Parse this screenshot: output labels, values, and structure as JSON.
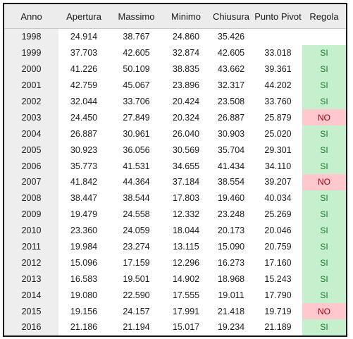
{
  "headers": [
    "Anno",
    "Apertura",
    "Massimo",
    "Minimo",
    "Chiusura",
    "Punto Pivot",
    "Regola"
  ],
  "rows": [
    {
      "anno": "1998",
      "apertura": "24.914",
      "massimo": "38.767",
      "minimo": "24.860",
      "chiusura": "35.426",
      "pivot": "",
      "regola": ""
    },
    {
      "anno": "1999",
      "apertura": "37.703",
      "massimo": "42.605",
      "minimo": "32.874",
      "chiusura": "42.605",
      "pivot": "33.018",
      "regola": "SI"
    },
    {
      "anno": "2000",
      "apertura": "41.226",
      "massimo": "50.109",
      "minimo": "38.835",
      "chiusura": "43.662",
      "pivot": "39.361",
      "regola": "SI"
    },
    {
      "anno": "2001",
      "apertura": "42.759",
      "massimo": "45.067",
      "minimo": "23.896",
      "chiusura": "32.317",
      "pivot": "44.202",
      "regola": "SI"
    },
    {
      "anno": "2002",
      "apertura": "32.044",
      "massimo": "33.706",
      "minimo": "20.424",
      "chiusura": "23.508",
      "pivot": "33.760",
      "regola": "SI"
    },
    {
      "anno": "2003",
      "apertura": "24.450",
      "massimo": "27.849",
      "minimo": "20.324",
      "chiusura": "26.887",
      "pivot": "25.879",
      "regola": "NO"
    },
    {
      "anno": "2004",
      "apertura": "26.887",
      "massimo": "30.961",
      "minimo": "26.040",
      "chiusura": "30.903",
      "pivot": "25.020",
      "regola": "SI"
    },
    {
      "anno": "2005",
      "apertura": "30.923",
      "massimo": "36.056",
      "minimo": "30.569",
      "chiusura": "35.704",
      "pivot": "29.301",
      "regola": "SI"
    },
    {
      "anno": "2006",
      "apertura": "35.773",
      "massimo": "41.531",
      "minimo": "34.655",
      "chiusura": "41.434",
      "pivot": "34.110",
      "regola": "SI"
    },
    {
      "anno": "2007",
      "apertura": "41.842",
      "massimo": "44.364",
      "minimo": "37.184",
      "chiusura": "38.554",
      "pivot": "39.207",
      "regola": "NO"
    },
    {
      "anno": "2008",
      "apertura": "38.447",
      "massimo": "38.544",
      "minimo": "17.803",
      "chiusura": "19.460",
      "pivot": "40.034",
      "regola": "SI"
    },
    {
      "anno": "2009",
      "apertura": "19.479",
      "massimo": "24.558",
      "minimo": "12.332",
      "chiusura": "23.248",
      "pivot": "25.269",
      "regola": "SI"
    },
    {
      "anno": "2010",
      "apertura": "23.360",
      "massimo": "24.059",
      "minimo": "18.044",
      "chiusura": "20.173",
      "pivot": "20.046",
      "regola": "SI"
    },
    {
      "anno": "2011",
      "apertura": "19.984",
      "massimo": "23.274",
      "minimo": "13.115",
      "chiusura": "15.090",
      "pivot": "20.759",
      "regola": "SI"
    },
    {
      "anno": "2012",
      "apertura": "15.096",
      "massimo": "17.159",
      "minimo": "12.296",
      "chiusura": "16.273",
      "pivot": "17.160",
      "regola": "SI"
    },
    {
      "anno": "2013",
      "apertura": "16.583",
      "massimo": "19.501",
      "minimo": "14.902",
      "chiusura": "18.968",
      "pivot": "15.243",
      "regola": "SI"
    },
    {
      "anno": "2014",
      "apertura": "19.080",
      "massimo": "22.590",
      "minimo": "17.555",
      "chiusura": "19.011",
      "pivot": "17.790",
      "regola": "SI"
    },
    {
      "anno": "2015",
      "apertura": "19.156",
      "massimo": "24.157",
      "minimo": "17.991",
      "chiusura": "21.418",
      "pivot": "19.719",
      "regola": "NO"
    },
    {
      "anno": "2016",
      "apertura": "21.186",
      "massimo": "21.194",
      "minimo": "15.017",
      "chiusura": "19.234",
      "pivot": "21.189",
      "regola": "SI"
    }
  ],
  "colors": {
    "si_bg": "#c6efce",
    "si_text": "#137c2b",
    "no_bg": "#ffc7ce",
    "no_text": "#9c0006",
    "header_bg": "#ececec",
    "year_bg": "#eeeeee"
  }
}
